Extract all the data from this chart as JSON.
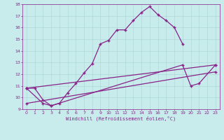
{
  "xlabel": "Windchill (Refroidissement éolien,°C)",
  "xlim": [
    -0.5,
    23.5
  ],
  "ylim": [
    9,
    18
  ],
  "yticks": [
    9,
    10,
    11,
    12,
    13,
    14,
    15,
    16,
    17,
    18
  ],
  "xticks": [
    0,
    1,
    2,
    3,
    4,
    5,
    6,
    7,
    8,
    9,
    10,
    11,
    12,
    13,
    14,
    15,
    16,
    17,
    18,
    19,
    20,
    21,
    22,
    23
  ],
  "bg_color": "#c8ecec",
  "grid_color": "#b0d8d8",
  "line_color": "#882288",
  "line1_x": [
    0,
    1,
    2,
    3,
    4,
    5,
    6,
    7,
    8,
    9,
    10,
    11,
    12,
    13,
    14,
    15,
    16,
    17,
    18,
    19
  ],
  "line1_y": [
    10.8,
    10.8,
    9.8,
    9.3,
    9.5,
    10.4,
    11.2,
    12.1,
    12.9,
    14.6,
    14.9,
    15.8,
    15.8,
    16.6,
    17.3,
    17.8,
    17.1,
    16.6,
    16.0,
    14.6
  ],
  "line2_x": [
    0,
    23
  ],
  "line2_y": [
    10.8,
    12.8
  ],
  "line3_x": [
    0,
    23
  ],
  "line3_y": [
    9.5,
    12.2
  ],
  "line4_x": [
    0,
    2,
    3,
    19,
    20,
    21,
    23
  ],
  "line4_y": [
    10.8,
    9.5,
    9.3,
    12.8,
    11.0,
    11.2,
    12.8
  ]
}
